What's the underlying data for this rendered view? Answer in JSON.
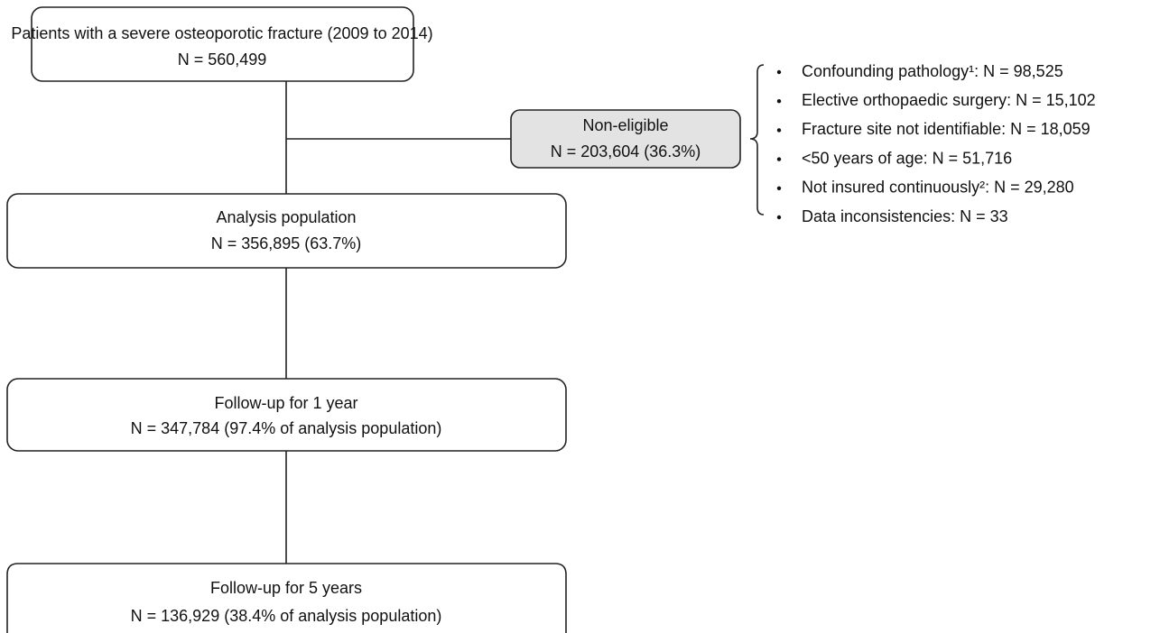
{
  "nodes": [
    {
      "label": "Patients with a severe osteoporotic fracture (2009 to 2014)",
      "count": "N = 560,499"
    },
    {
      "label": "Non-eligible",
      "count": "N = 203,604 (36.3%)"
    },
    {
      "label": "Analysis population",
      "count": "N = 356,895 (63.7%)"
    },
    {
      "label": "Follow-up for 1 year",
      "count": "N = 347,784 (97.4% of analysis population)"
    },
    {
      "label": "Follow-up for 5 years",
      "count": "N = 136,929 (38.4% of analysis population)"
    }
  ],
  "exclusions": [
    "Confounding pathology¹: N = 98,525",
    "Elective orthopaedic surgery: N = 15,102",
    "Fracture site not identifiable: N = 18,059",
    "<50 years of age: N = 51,716",
    "Not insured continuously²: N = 29,280",
    "Data inconsistencies: N = 33"
  ]
}
